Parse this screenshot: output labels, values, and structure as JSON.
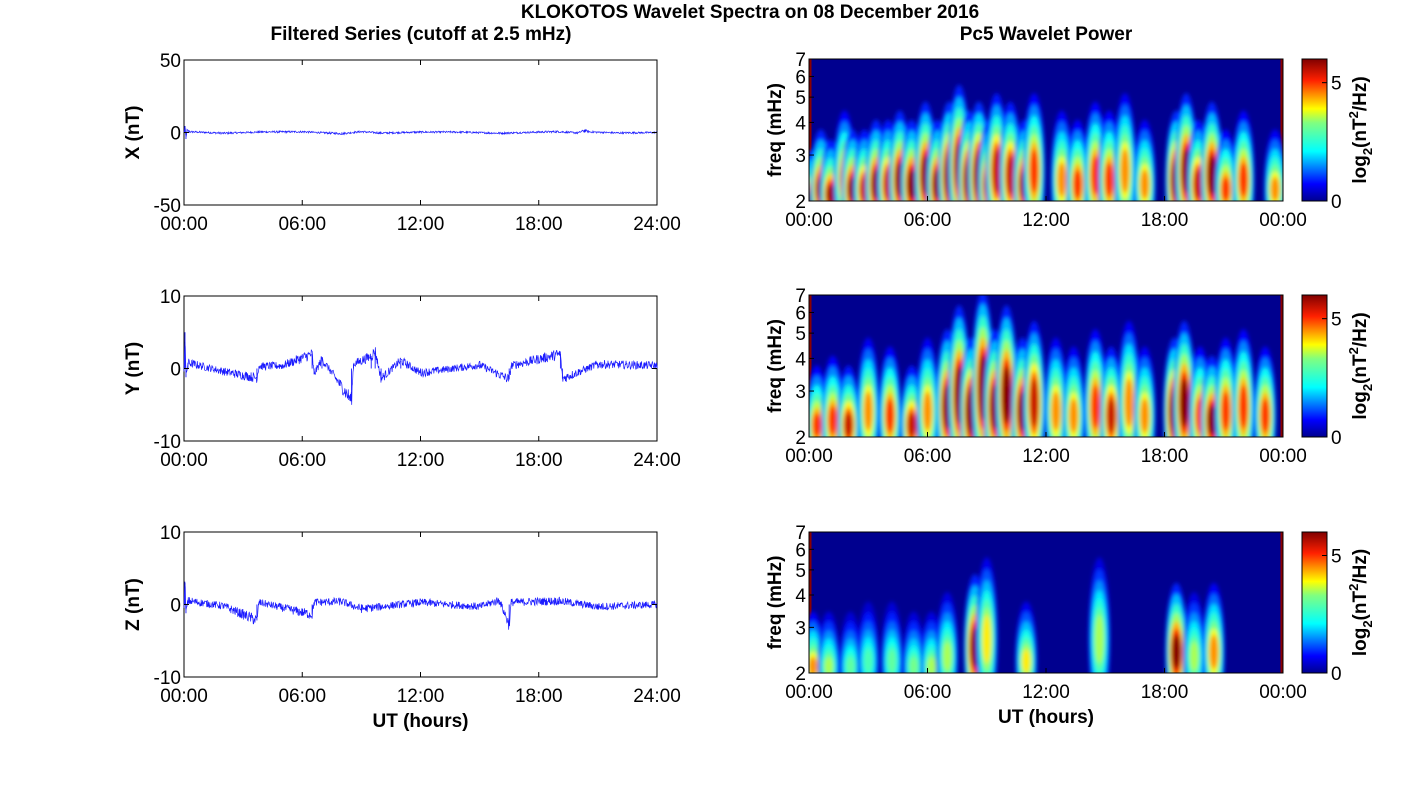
{
  "figure": {
    "title": "KLOKOTOS Wavelet Spectra on 08 December 2016",
    "left_title": "Filtered Series (cutoff at 2.5 mHz)",
    "right_title": "Pc5 Wavelet Power",
    "bottom_xlabel": "UT (hours)"
  },
  "colors": {
    "trace": "#1a1aff",
    "axes": "#000000",
    "background": "#ffffff",
    "colormap": "jet",
    "colormap_stops": [
      "#00008f",
      "#0000ff",
      "#0080ff",
      "#00ffff",
      "#80ff80",
      "#ffff00",
      "#ff8000",
      "#ff0000",
      "#800000"
    ]
  },
  "chart_data": [
    {
      "type": "line",
      "panel": "X filtered series",
      "ylabel": "X (nT)",
      "ylim": [
        -50,
        50
      ],
      "yticks": [
        -50,
        0,
        50
      ],
      "xlim_hours": [
        0,
        24
      ],
      "xticks": [
        "00:00",
        "06:00",
        "12:00",
        "18:00",
        "24:00"
      ],
      "series": [
        {
          "x_hours": [
            0,
            0.05,
            0.1,
            0.15,
            0.3,
            2,
            4,
            6,
            8,
            9,
            10,
            12,
            14,
            16,
            18,
            19,
            20,
            20.3,
            20.6,
            22,
            24
          ],
          "values": [
            0,
            4.5,
            -4.5,
            1.5,
            0.5,
            -0.5,
            0.4,
            0.5,
            -0.8,
            0.6,
            -0.4,
            0.3,
            0.3,
            -0.5,
            0.3,
            0.6,
            -0.3,
            1.5,
            0.4,
            -0.3,
            0
          ]
        }
      ]
    },
    {
      "type": "line",
      "panel": "Y filtered series",
      "ylabel": "Y (nT)",
      "ylim": [
        -10,
        10
      ],
      "yticks": [
        -10,
        0,
        10
      ],
      "xlim_hours": [
        0,
        24
      ],
      "xticks": [
        "00:00",
        "06:00",
        "12:00",
        "18:00",
        "24:00"
      ],
      "series": [
        {
          "x_hours": [
            0,
            0.05,
            0.1,
            0.2,
            2,
            3.7,
            3.8,
            5,
            6.5,
            6.6,
            7,
            8.5,
            8.6,
            9.5,
            9.7,
            10,
            11,
            12,
            15,
            16.5,
            16.6,
            19.1,
            19.2,
            21,
            24
          ],
          "values": [
            0,
            5,
            -1.2,
            0.8,
            -0.4,
            -1.3,
            0.3,
            0.4,
            2,
            -0.8,
            1.3,
            -4.4,
            0.6,
            1.7,
            2.4,
            -1.4,
            1.1,
            -0.6,
            0.5,
            -1.5,
            0.4,
            2,
            -1.4,
            0.6,
            0.4
          ]
        }
      ]
    },
    {
      "type": "line",
      "panel": "Z filtered series",
      "ylabel": "Z (nT)",
      "ylim": [
        -10,
        10
      ],
      "yticks": [
        -10,
        0,
        10
      ],
      "xlim_hours": [
        0,
        24
      ],
      "xticks": [
        "00:00",
        "06:00",
        "12:00",
        "18:00",
        "24:00"
      ],
      "xlabel": "UT (hours)",
      "series": [
        {
          "x_hours": [
            0,
            0.05,
            0.1,
            0.2,
            2,
            3.7,
            3.8,
            6.5,
            6.6,
            8,
            9,
            12,
            15,
            16,
            16.5,
            16.6,
            19,
            21,
            24
          ],
          "values": [
            0,
            3,
            -1.2,
            0.5,
            -0.2,
            -2.2,
            0.3,
            -1.4,
            0.3,
            0.4,
            -0.6,
            0.3,
            -0.3,
            0.6,
            -2.8,
            0.3,
            0.5,
            -0.3,
            0
          ]
        }
      ]
    },
    {
      "type": "heatmap",
      "panel": "X wavelet power",
      "ylabel": "freq (mHz)",
      "ylim": [
        2,
        7
      ],
      "yscale": "log",
      "yticks": [
        2,
        3,
        4,
        5,
        6,
        7
      ],
      "xlim_hours": [
        0,
        24
      ],
      "xticks": [
        "00:00",
        "06:00",
        "12:00",
        "18:00",
        "00:00"
      ],
      "colorbar": {
        "label_main": "log",
        "label_sub": "2",
        "label_paren_open": "(nT",
        "label_sup": "2",
        "label_rest": "/Hz)",
        "clim": [
          0,
          6
        ],
        "ticks": [
          0,
          5
        ]
      },
      "blobs_hours_mHz_power": [
        [
          0.1,
          2.1,
          6.5
        ],
        [
          0.6,
          2.3,
          6
        ],
        [
          1.1,
          2.2,
          5.8
        ],
        [
          1.8,
          2.5,
          5
        ],
        [
          2.2,
          2.3,
          6
        ],
        [
          2.8,
          2.3,
          5.5
        ],
        [
          3.4,
          2.4,
          6
        ],
        [
          4.0,
          2.4,
          5.5
        ],
        [
          4.6,
          2.5,
          6
        ],
        [
          5.2,
          2.4,
          6
        ],
        [
          5.9,
          2.6,
          6
        ],
        [
          6.5,
          2.4,
          6
        ],
        [
          7.1,
          2.6,
          6.5
        ],
        [
          7.6,
          2.8,
          6
        ],
        [
          8.1,
          2.5,
          6.5
        ],
        [
          8.6,
          2.6,
          6.5
        ],
        [
          9.1,
          2.4,
          6
        ],
        [
          9.5,
          2.7,
          5.5
        ],
        [
          10.2,
          2.6,
          5.5
        ],
        [
          10.9,
          2.4,
          6
        ],
        [
          11.4,
          2.7,
          5
        ],
        [
          12.8,
          2.5,
          4.5
        ],
        [
          13.6,
          2.4,
          5
        ],
        [
          14.5,
          2.6,
          5
        ],
        [
          15.2,
          2.5,
          5
        ],
        [
          16.0,
          2.7,
          4.5
        ],
        [
          17.0,
          2.4,
          4.5
        ],
        [
          18.6,
          2.5,
          6.5
        ],
        [
          19.1,
          2.7,
          6
        ],
        [
          19.7,
          2.4,
          5.5
        ],
        [
          20.4,
          2.6,
          6
        ],
        [
          21.1,
          2.3,
          5
        ],
        [
          22.0,
          2.5,
          5
        ],
        [
          23.6,
          2.3,
          4.5
        ]
      ]
    },
    {
      "type": "heatmap",
      "panel": "Y wavelet power",
      "ylabel": "freq (mHz)",
      "ylim": [
        2,
        7
      ],
      "yscale": "log",
      "yticks": [
        2,
        3,
        4,
        5,
        6,
        7
      ],
      "xlim_hours": [
        0,
        24
      ],
      "xticks": [
        "00:00",
        "06:00",
        "12:00",
        "18:00",
        "00:00"
      ],
      "colorbar": {
        "label_main": "log",
        "label_sub": "2",
        "label_paren_open": "(nT",
        "label_sup": "2",
        "label_rest": "/Hz)",
        "clim": [
          0,
          6
        ],
        "ticks": [
          0,
          5
        ]
      },
      "blobs_hours_mHz_power": [
        [
          0.4,
          2.3,
          5
        ],
        [
          1.2,
          2.4,
          5
        ],
        [
          2.0,
          2.3,
          5.5
        ],
        [
          3.0,
          2.6,
          4.5
        ],
        [
          4.1,
          2.5,
          5
        ],
        [
          5.2,
          2.3,
          5.5
        ],
        [
          6.0,
          2.6,
          4.5
        ],
        [
          7.0,
          2.7,
          6
        ],
        [
          7.6,
          3.0,
          6
        ],
        [
          8.2,
          2.6,
          6.5
        ],
        [
          8.8,
          3.2,
          6
        ],
        [
          9.4,
          2.7,
          6
        ],
        [
          10.0,
          3.0,
          6
        ],
        [
          10.8,
          2.6,
          6
        ],
        [
          11.4,
          2.8,
          5.5
        ],
        [
          12.5,
          2.6,
          4.5
        ],
        [
          13.4,
          2.5,
          4.5
        ],
        [
          14.5,
          2.7,
          5
        ],
        [
          15.3,
          2.5,
          5.5
        ],
        [
          16.2,
          2.8,
          4.5
        ],
        [
          17.0,
          2.5,
          4.5
        ],
        [
          18.5,
          2.6,
          6.5
        ],
        [
          19.0,
          2.8,
          6
        ],
        [
          19.8,
          2.5,
          5
        ],
        [
          20.4,
          2.4,
          6
        ],
        [
          21.1,
          2.6,
          5
        ],
        [
          22.0,
          2.7,
          5
        ],
        [
          23.1,
          2.5,
          5
        ]
      ]
    },
    {
      "type": "heatmap",
      "panel": "Z wavelet power",
      "ylabel": "freq (mHz)",
      "ylim": [
        2,
        7
      ],
      "yscale": "log",
      "yticks": [
        2,
        3,
        4,
        5,
        6,
        7
      ],
      "xlim_hours": [
        0,
        24
      ],
      "xticks": [
        "00:00",
        "06:00",
        "12:00",
        "18:00",
        "00:00"
      ],
      "xlabel": "UT (hours)",
      "colorbar": {
        "label_main": "log",
        "label_sub": "2",
        "label_paren_open": "(nT",
        "label_sup": "2",
        "label_rest": "/Hz)",
        "clim": [
          0,
          6
        ],
        "ticks": [
          0,
          5
        ]
      },
      "blobs_hours_mHz_power": [
        [
          0.2,
          2.2,
          4.5
        ],
        [
          1.0,
          2.2,
          3.5
        ],
        [
          2.1,
          2.2,
          3
        ],
        [
          3.0,
          2.3,
          2.8
        ],
        [
          4.2,
          2.3,
          3
        ],
        [
          5.3,
          2.2,
          3.2
        ],
        [
          6.2,
          2.2,
          3.5
        ],
        [
          7.0,
          2.4,
          3.5
        ],
        [
          8.4,
          2.6,
          6
        ],
        [
          9.0,
          2.8,
          4
        ],
        [
          11.0,
          2.3,
          4
        ],
        [
          14.7,
          2.8,
          3.5
        ],
        [
          18.6,
          2.5,
          6
        ],
        [
          19.5,
          2.4,
          3.5
        ],
        [
          20.5,
          2.5,
          4.5
        ]
      ]
    }
  ]
}
